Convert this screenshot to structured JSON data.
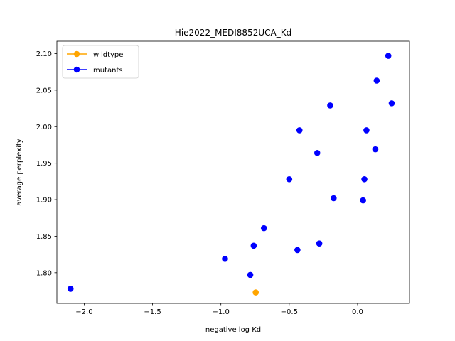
{
  "chart_data": {
    "type": "scatter",
    "title": "Hie2022_MEDI8852UCA_Kd",
    "xlabel": "negative log Kd",
    "ylabel": "average perplexity",
    "xlim": [
      -2.2,
      0.38
    ],
    "ylim": [
      1.758,
      2.117
    ],
    "xticks": [
      -2.0,
      -1.5,
      -1.0,
      -0.5,
      0.0
    ],
    "xtick_labels": [
      "−2.0",
      "−1.5",
      "−1.0",
      "−0.5",
      "0.0"
    ],
    "yticks": [
      1.8,
      1.85,
      1.9,
      1.95,
      2.0,
      2.05,
      2.1
    ],
    "ytick_labels": [
      "1.80",
      "1.85",
      "1.90",
      "1.95",
      "2.00",
      "2.05",
      "2.10"
    ],
    "grid": false,
    "legend_position": "top-left",
    "series": [
      {
        "name": "wildtype",
        "color": "#ffa500",
        "points": [
          {
            "x": -0.745,
            "y": 1.773
          }
        ]
      },
      {
        "name": "mutants",
        "color": "#0000ff",
        "points": [
          {
            "x": -2.1,
            "y": 1.778
          },
          {
            "x": -0.97,
            "y": 1.819
          },
          {
            "x": -0.785,
            "y": 1.797
          },
          {
            "x": -0.76,
            "y": 1.837
          },
          {
            "x": -0.685,
            "y": 1.861
          },
          {
            "x": -0.44,
            "y": 1.831
          },
          {
            "x": -0.28,
            "y": 1.84
          },
          {
            "x": -0.5,
            "y": 1.928
          },
          {
            "x": -0.425,
            "y": 1.995
          },
          {
            "x": -0.295,
            "y": 1.964
          },
          {
            "x": -0.2,
            "y": 2.029
          },
          {
            "x": -0.175,
            "y": 1.902
          },
          {
            "x": 0.04,
            "y": 1.899
          },
          {
            "x": 0.05,
            "y": 1.928
          },
          {
            "x": 0.065,
            "y": 1.995
          },
          {
            "x": 0.13,
            "y": 1.969
          },
          {
            "x": 0.14,
            "y": 2.063
          },
          {
            "x": 0.225,
            "y": 2.097
          },
          {
            "x": 0.25,
            "y": 2.032
          }
        ]
      }
    ]
  }
}
